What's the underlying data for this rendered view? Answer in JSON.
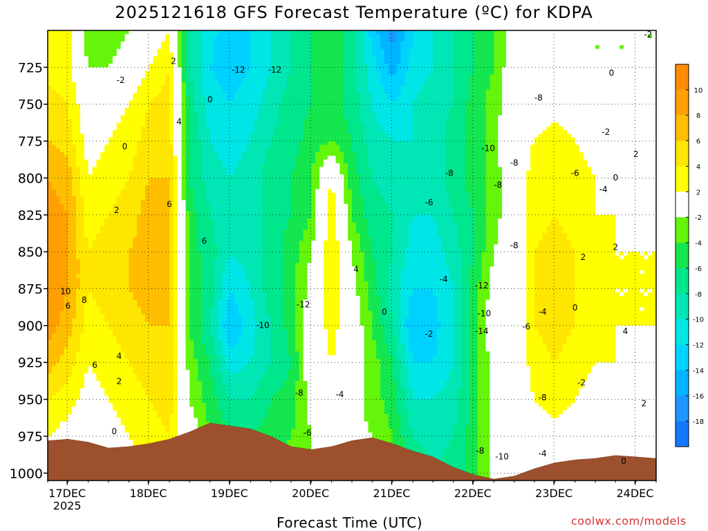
{
  "title": "2025121618 GFS Forecast Temperature (ºC) for KDPA",
  "credit": "coolwx.com/models",
  "chart_data": {
    "type": "heatmap",
    "title": "2025121618 GFS Forecast Temperature (ºC) for KDPA",
    "xlabel": "Forecast Time (UTC)",
    "ylabel": "Pressure (hPa)",
    "xlim": [
      0,
      7.5
    ],
    "ylim": [
      700,
      1005
    ],
    "y_axis_inverted": true,
    "grid": true,
    "x_ticks": [
      {
        "value": 0.24,
        "label": "17DEC",
        "sublabel": "2025"
      },
      {
        "value": 1.24,
        "label": "18DEC"
      },
      {
        "value": 2.24,
        "label": "19DEC"
      },
      {
        "value": 3.24,
        "label": "20DEC"
      },
      {
        "value": 4.24,
        "label": "21DEC"
      },
      {
        "value": 5.24,
        "label": "22DEC"
      },
      {
        "value": 6.24,
        "label": "23DEC"
      },
      {
        "value": 7.24,
        "label": "24DEC"
      }
    ],
    "y_ticks": [
      725,
      750,
      775,
      800,
      825,
      850,
      875,
      900,
      925,
      950,
      975,
      1000
    ],
    "colorbar": {
      "bins": [
        {
          "min": -20,
          "max": -18,
          "color": "#1478ff"
        },
        {
          "min": -18,
          "max": -16,
          "color": "#1d96ff"
        },
        {
          "min": -16,
          "max": -14,
          "color": "#00b4ff"
        },
        {
          "min": -14,
          "max": -12,
          "color": "#00d2ff"
        },
        {
          "min": -12,
          "max": -10,
          "color": "#00e6e6"
        },
        {
          "min": -10,
          "max": -8,
          "color": "#00e6b4"
        },
        {
          "min": -8,
          "max": -6,
          "color": "#00e68c"
        },
        {
          "min": -6,
          "max": -4,
          "color": "#14e650"
        },
        {
          "min": -4,
          "max": -2,
          "color": "#64f50a"
        },
        {
          "min": -2,
          "max": 2,
          "color": "#ffffff"
        },
        {
          "min": 2,
          "max": 4,
          "color": "#ffff00"
        },
        {
          "min": 4,
          "max": 6,
          "color": "#ffe600"
        },
        {
          "min": 6,
          "max": 8,
          "color": "#ffbe00"
        },
        {
          "min": 8,
          "max": 10,
          "color": "#ffa000"
        },
        {
          "min": 10,
          "max": 12,
          "color": "#ff8c00"
        }
      ],
      "tick_labels": [
        "10",
        "8",
        "6",
        "4",
        "2",
        "-2",
        "-4",
        "-6",
        "-8",
        "-10",
        "-12",
        "-14",
        "-16",
        "-18"
      ]
    },
    "column_times": [
      0.0,
      0.25,
      0.5,
      0.75,
      1.0,
      1.25,
      1.5,
      1.75,
      2.0,
      2.25,
      2.5,
      2.75,
      3.0,
      3.25,
      3.5,
      3.75,
      4.0,
      4.25,
      4.5,
      4.75,
      5.0,
      5.25,
      5.5,
      5.75,
      6.0,
      6.25,
      6.5,
      6.75,
      7.0,
      7.25,
      7.5
    ],
    "row_levels": [
      700,
      725,
      750,
      775,
      800,
      825,
      850,
      875,
      900,
      925,
      950,
      975,
      1000
    ],
    "temperature_columns": [
      [
        2,
        3,
        5,
        6,
        8,
        9,
        10,
        10,
        9,
        7,
        4,
        2,
        0
      ],
      [
        3,
        3,
        4,
        5,
        7,
        8,
        8,
        8,
        7,
        5,
        3,
        1,
        0
      ],
      [
        -4,
        -2,
        0,
        1,
        2,
        3,
        4,
        4,
        3,
        2,
        1,
        0,
        0
      ],
      [
        -4,
        -2,
        1,
        2,
        3,
        4,
        5,
        5,
        4,
        3,
        2,
        1,
        0
      ],
      [
        -2,
        0,
        2,
        3,
        4,
        5,
        6,
        6,
        5,
        4,
        3,
        2,
        1
      ],
      [
        0,
        2,
        4,
        5,
        6,
        7,
        7,
        7,
        6,
        5,
        4,
        3,
        2
      ],
      [
        2,
        4,
        5,
        5,
        6,
        6,
        6,
        6,
        6,
        5,
        5,
        4,
        3
      ],
      [
        -8,
        -8,
        -7,
        -6,
        -6,
        -5,
        -5,
        -4,
        -4,
        -3,
        -2,
        0,
        2
      ],
      [
        -11,
        -12,
        -11,
        -10,
        -9,
        -8,
        -7,
        -7,
        -8,
        -6,
        -5,
        -4,
        -2
      ],
      [
        -14,
        -13,
        -12,
        -11,
        -10,
        -9,
        -10,
        -12,
        -14,
        -11,
        -8,
        -6,
        -4
      ],
      [
        -12,
        -12,
        -11,
        -10,
        -9,
        -9,
        -9,
        -10,
        -11,
        -10,
        -8,
        -6,
        -5
      ],
      [
        -10,
        -10,
        -9,
        -8,
        -7,
        -7,
        -7,
        -7,
        -8,
        -8,
        -6,
        -5,
        -4
      ],
      [
        -8,
        -8,
        -7,
        -7,
        -6,
        -6,
        -5,
        -5,
        -5,
        -6,
        -5,
        -4,
        -3
      ],
      [
        -6,
        -6,
        -6,
        -5,
        -4,
        -4,
        -2,
        -1,
        0,
        0,
        -1,
        -2,
        -2
      ],
      [
        -5,
        -5,
        -5,
        -4,
        2,
        4,
        4,
        4,
        3,
        2,
        0,
        0,
        1
      ],
      [
        -7,
        -7,
        -7,
        -6,
        -5,
        -4,
        -2,
        -1,
        0,
        0,
        -1,
        -1,
        0
      ],
      [
        -13,
        -11,
        -10,
        -9,
        -8,
        -7,
        -6,
        -5,
        -4,
        -3,
        -3,
        -2,
        -2
      ],
      [
        -17,
        -15,
        -12,
        -10,
        -9,
        -8,
        -8,
        -9,
        -8,
        -6,
        -5,
        -4,
        -4
      ],
      [
        -12,
        -11,
        -10,
        -10,
        -10,
        -10,
        -11,
        -12,
        -14,
        -12,
        -10,
        -8,
        -6
      ],
      [
        -10,
        -10,
        -9,
        -9,
        -9,
        -10,
        -11,
        -12,
        -13,
        -12,
        -10,
        -9,
        -8
      ],
      [
        -8,
        -8,
        -8,
        -7,
        -7,
        -8,
        -9,
        -10,
        -10,
        -10,
        -9,
        -8,
        -7
      ],
      [
        -6,
        -6,
        -5,
        -5,
        -5,
        -6,
        -6,
        -5,
        -5,
        -5,
        -5,
        -5,
        -5
      ],
      [
        -4,
        -4,
        -3,
        -3,
        -3,
        -3,
        -2,
        -1,
        0,
        -1,
        -1,
        -1,
        -1
      ],
      [
        -1,
        0,
        0,
        1,
        0,
        0,
        0,
        0,
        0,
        0,
        0,
        0,
        0
      ],
      [
        -2,
        0,
        1,
        2,
        3,
        3,
        4,
        4,
        4,
        3,
        2,
        1,
        0
      ],
      [
        -2,
        -1,
        1,
        3,
        3,
        4,
        5,
        5,
        5,
        4,
        3,
        1,
        0
      ],
      [
        -2,
        -2,
        0,
        2,
        3,
        3,
        4,
        4,
        4,
        3,
        2,
        0,
        0
      ],
      [
        -2,
        -2,
        0,
        1,
        2,
        2,
        3,
        3,
        3,
        2,
        1,
        0,
        0
      ],
      [
        -2,
        -2,
        0,
        1,
        1,
        2,
        2,
        2,
        2,
        2,
        1,
        0,
        0
      ],
      [
        -2,
        -2,
        0,
        1,
        1,
        1,
        2,
        2,
        2,
        1,
        1,
        0,
        0
      ],
      [
        -2,
        -2,
        0,
        1,
        1,
        1,
        2,
        2,
        2,
        1,
        1,
        0,
        0
      ]
    ],
    "surface_pressure": [
      {
        "t": 0.0,
        "p": 978
      },
      {
        "t": 0.25,
        "p": 977
      },
      {
        "t": 0.5,
        "p": 979
      },
      {
        "t": 0.75,
        "p": 983
      },
      {
        "t": 1.0,
        "p": 982
      },
      {
        "t": 1.25,
        "p": 980
      },
      {
        "t": 1.5,
        "p": 977
      },
      {
        "t": 1.75,
        "p": 972
      },
      {
        "t": 2.0,
        "p": 966
      },
      {
        "t": 2.25,
        "p": 968
      },
      {
        "t": 2.5,
        "p": 970
      },
      {
        "t": 2.75,
        "p": 975
      },
      {
        "t": 3.0,
        "p": 982
      },
      {
        "t": 3.25,
        "p": 984
      },
      {
        "t": 3.5,
        "p": 982
      },
      {
        "t": 3.75,
        "p": 978
      },
      {
        "t": 4.0,
        "p": 976
      },
      {
        "t": 4.25,
        "p": 980
      },
      {
        "t": 4.5,
        "p": 985
      },
      {
        "t": 4.75,
        "p": 989
      },
      {
        "t": 5.0,
        "p": 996
      },
      {
        "t": 5.25,
        "p": 1001
      },
      {
        "t": 5.5,
        "p": 1004
      },
      {
        "t": 5.75,
        "p": 1002
      },
      {
        "t": 6.0,
        "p": 997
      },
      {
        "t": 6.25,
        "p": 993
      },
      {
        "t": 6.5,
        "p": 991
      },
      {
        "t": 6.75,
        "p": 990
      },
      {
        "t": 7.0,
        "p": 988
      },
      {
        "t": 7.25,
        "p": 989
      },
      {
        "t": 7.5,
        "p": 990
      }
    ],
    "contour_labels": [
      {
        "text": "-2",
        "t": 0.9,
        "p": 734
      },
      {
        "text": "2",
        "t": 1.55,
        "p": 721
      },
      {
        "text": "0",
        "t": 2.0,
        "p": 747
      },
      {
        "text": "4",
        "t": 1.62,
        "p": 762
      },
      {
        "text": "0",
        "t": 0.95,
        "p": 779
      },
      {
        "text": "2",
        "t": 0.85,
        "p": 822
      },
      {
        "text": "6",
        "t": 1.5,
        "p": 818
      },
      {
        "text": "6",
        "t": 1.93,
        "p": 843
      },
      {
        "text": "10",
        "t": 0.22,
        "p": 877
      },
      {
        "text": "6",
        "t": 0.25,
        "p": 887
      },
      {
        "text": "8",
        "t": 0.45,
        "p": 883
      },
      {
        "text": "6",
        "t": 0.58,
        "p": 927
      },
      {
        "text": "4",
        "t": 0.88,
        "p": 921
      },
      {
        "text": "2",
        "t": 0.88,
        "p": 938
      },
      {
        "text": "0",
        "t": 0.82,
        "p": 972
      },
      {
        "text": "-12",
        "t": 2.35,
        "p": 727
      },
      {
        "text": "-12",
        "t": 2.8,
        "p": 727
      },
      {
        "text": "-12",
        "t": 3.15,
        "p": 886
      },
      {
        "text": "-10",
        "t": 2.65,
        "p": 900
      },
      {
        "text": "-8",
        "t": 3.1,
        "p": 946
      },
      {
        "text": "-6",
        "t": 3.2,
        "p": 973
      },
      {
        "text": "-4",
        "t": 3.6,
        "p": 947
      },
      {
        "text": "4",
        "t": 3.8,
        "p": 862
      },
      {
        "text": "0",
        "t": 4.15,
        "p": 891
      },
      {
        "text": "-2",
        "t": 4.7,
        "p": 906
      },
      {
        "text": "-4",
        "t": 4.88,
        "p": 869
      },
      {
        "text": "-6",
        "t": 4.7,
        "p": 817
      },
      {
        "text": "-8",
        "t": 4.95,
        "p": 797
      },
      {
        "text": "-10",
        "t": 5.43,
        "p": 780
      },
      {
        "text": "-8",
        "t": 5.55,
        "p": 805
      },
      {
        "text": "-8",
        "t": 5.75,
        "p": 790
      },
      {
        "text": "-12",
        "t": 5.35,
        "p": 873
      },
      {
        "text": "-10",
        "t": 5.38,
        "p": 892
      },
      {
        "text": "-14",
        "t": 5.35,
        "p": 904
      },
      {
        "text": "-8",
        "t": 5.75,
        "p": 846
      },
      {
        "text": "-6",
        "t": 5.9,
        "p": 901
      },
      {
        "text": "-4",
        "t": 6.1,
        "p": 891
      },
      {
        "text": "-8",
        "t": 6.1,
        "p": 949
      },
      {
        "text": "-8",
        "t": 5.33,
        "p": 985
      },
      {
        "text": "-10",
        "t": 5.6,
        "p": 989
      },
      {
        "text": "-4",
        "t": 6.1,
        "p": 987
      },
      {
        "text": "-2",
        "t": 6.58,
        "p": 939
      },
      {
        "text": "-8",
        "t": 6.05,
        "p": 746
      },
      {
        "text": "-6",
        "t": 6.5,
        "p": 797
      },
      {
        "text": "-4",
        "t": 6.85,
        "p": 808
      },
      {
        "text": "-2",
        "t": 6.88,
        "p": 769
      },
      {
        "text": "2",
        "t": 6.6,
        "p": 854
      },
      {
        "text": "0",
        "t": 7.0,
        "p": 800
      },
      {
        "text": "2",
        "t": 7.0,
        "p": 847
      },
      {
        "text": "0",
        "t": 6.5,
        "p": 888
      },
      {
        "text": "2",
        "t": 7.25,
        "p": 784
      },
      {
        "text": "4",
        "t": 7.66,
        "p": 854
      },
      {
        "text": "4",
        "t": 7.12,
        "p": 904
      },
      {
        "text": "2",
        "t": 7.35,
        "p": 953
      },
      {
        "text": "4",
        "t": 8.2,
        "p": 945
      },
      {
        "text": "0",
        "t": 7.1,
        "p": 992
      },
      {
        "text": "0",
        "t": 6.95,
        "p": 729
      },
      {
        "text": "-2",
        "t": 7.4,
        "p": 703
      }
    ]
  }
}
